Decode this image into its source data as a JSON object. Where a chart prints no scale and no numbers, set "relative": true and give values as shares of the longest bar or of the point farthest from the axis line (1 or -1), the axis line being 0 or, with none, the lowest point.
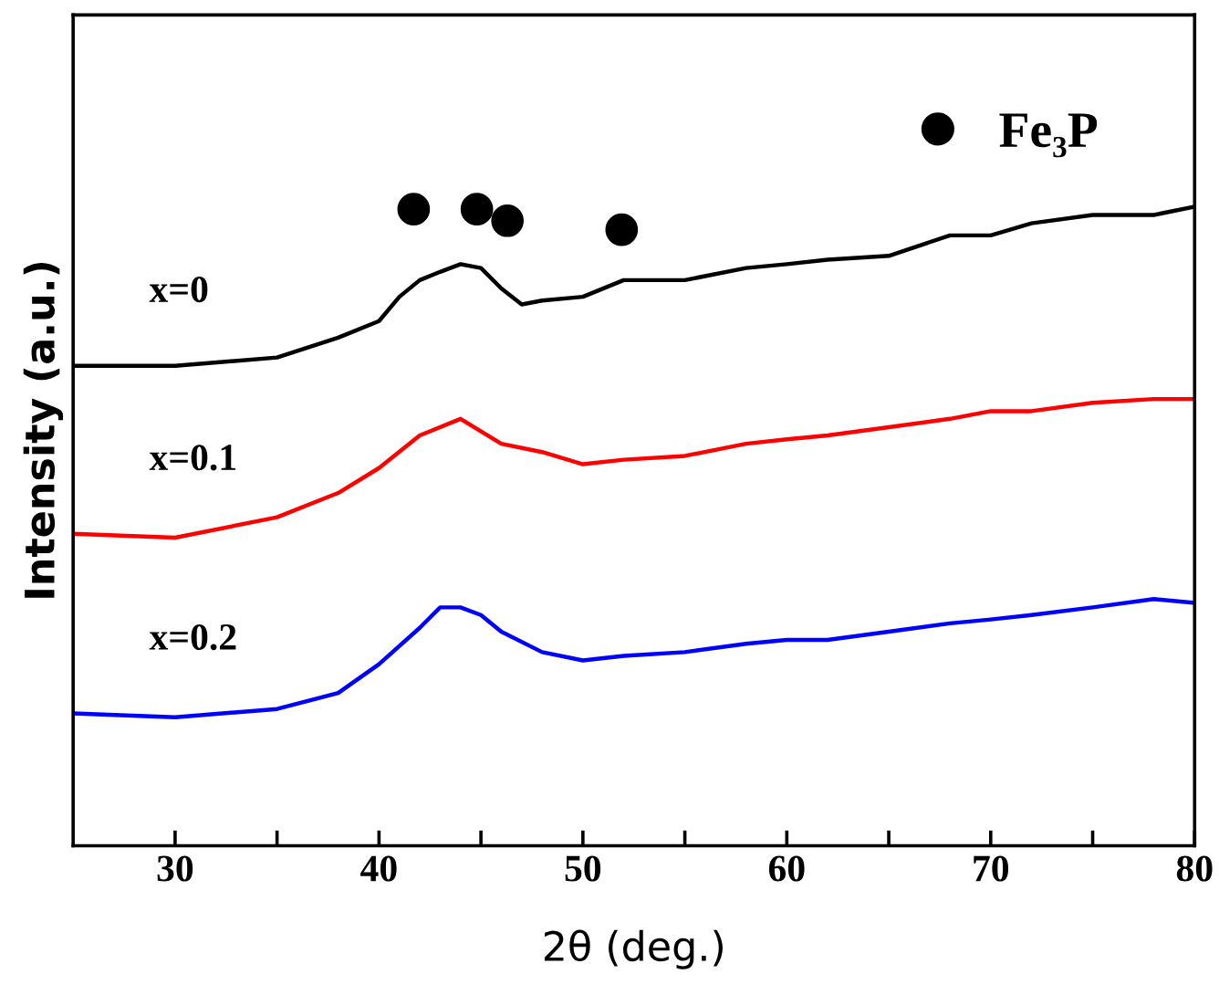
{
  "chart_data": {
    "type": "line",
    "relative": true,
    "xlabel": "2θ (deg.)",
    "ylabel": "Intensity (a.u.)",
    "xlim": [
      25,
      80
    ],
    "xticks": [
      30,
      {
        "value": 35,
        "label": null
      },
      40,
      {
        "value": 45,
        "label": null
      },
      50,
      {
        "value": 55,
        "label": null
      },
      60,
      {
        "value": 65,
        "label": null
      },
      70,
      {
        "value": 75,
        "label": null
      },
      80
    ],
    "grid": false,
    "legend": "top right",
    "marker": "none",
    "line_style": "solid",
    "series": [
      {
        "name": "x=0",
        "color": "#000000",
        "x": [
          25,
          30,
          35,
          38,
          40,
          41,
          42,
          43,
          44,
          45,
          46,
          47,
          48,
          50,
          52,
          55,
          58,
          60,
          62,
          65,
          68,
          70,
          72,
          75,
          78,
          80
        ],
        "values": [
          0.751,
          0.751,
          0.764,
          0.795,
          0.821,
          0.859,
          0.885,
          0.898,
          0.91,
          0.904,
          0.872,
          0.847,
          0.853,
          0.859,
          0.885,
          0.885,
          0.904,
          0.91,
          0.917,
          0.923,
          0.955,
          0.955,
          0.974,
          0.987,
          0.987,
          1
        ]
      },
      {
        "name": "x=0.1",
        "color": "#ff0000",
        "x": [
          25,
          30,
          35,
          38,
          40,
          42,
          44,
          46,
          48,
          50,
          52,
          55,
          58,
          60,
          62,
          65,
          68,
          70,
          72,
          75,
          78,
          80
        ],
        "values": [
          0.488,
          0.482,
          0.514,
          0.552,
          0.591,
          0.642,
          0.668,
          0.629,
          0.616,
          0.597,
          0.604,
          0.61,
          0.629,
          0.636,
          0.642,
          0.655,
          0.668,
          0.68,
          0.68,
          0.693,
          0.699,
          0.699
        ]
      },
      {
        "name": "x=0.2",
        "color": "#0000ff",
        "x": [
          25,
          30,
          35,
          38,
          40,
          42,
          43,
          44,
          45,
          46,
          48,
          50,
          52,
          55,
          58,
          60,
          62,
          65,
          68,
          70,
          72,
          75,
          78,
          80
        ],
        "values": [
          0.207,
          0.201,
          0.214,
          0.239,
          0.284,
          0.341,
          0.373,
          0.373,
          0.361,
          0.335,
          0.303,
          0.29,
          0.297,
          0.303,
          0.316,
          0.322,
          0.322,
          0.335,
          0.348,
          0.354,
          0.361,
          0.373,
          0.386,
          0.38
        ]
      },
      {
        "name": "Fe₃P",
        "type": "scatter",
        "marker": "circle",
        "color": "#000000",
        "x": [
          41.7,
          44.8,
          46.3,
          51.9
        ],
        "values": [
          0.996,
          0.996,
          0.978,
          0.964
        ]
      }
    ]
  }
}
